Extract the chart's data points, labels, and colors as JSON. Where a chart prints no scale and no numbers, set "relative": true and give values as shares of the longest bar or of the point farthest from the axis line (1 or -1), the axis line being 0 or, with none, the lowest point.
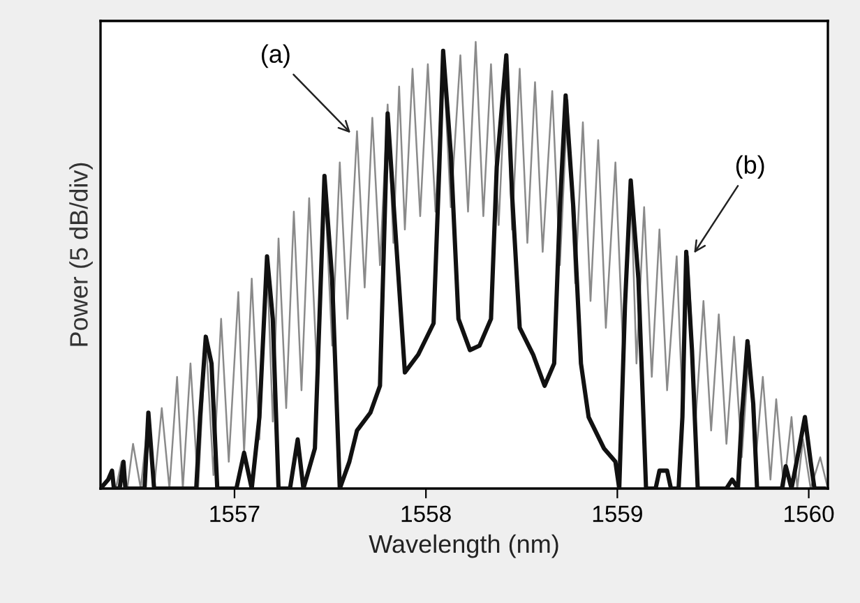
{
  "chart_data": {
    "type": "line",
    "relative": true,
    "xlabel": "Wavelength (nm)",
    "ylabel": "Power (5 dB/div)",
    "xlim": [
      1556.3,
      1560.1
    ],
    "xticks": [
      1557,
      1558,
      1559,
      1560
    ],
    "grid": false,
    "legend": false,
    "marker": "none",
    "line_style": "solid",
    "annotations": [
      {
        "text": "(a)",
        "x": 1557.62,
        "y": 0.79
      },
      {
        "text": "(b)",
        "x": 1559.39,
        "y": 0.52
      }
    ],
    "series": [
      {
        "color": "#8a8a8a",
        "x": [
          1556.3,
          1556.35,
          1556.38,
          1556.41,
          1556.44,
          1556.47,
          1556.51,
          1556.55,
          1556.58,
          1556.62,
          1556.66,
          1556.7,
          1556.73,
          1556.77,
          1556.81,
          1556.85,
          1556.89,
          1556.93,
          1556.97,
          1557.02,
          1557.05,
          1557.09,
          1557.13,
          1557.17,
          1557.2,
          1557.23,
          1557.27,
          1557.31,
          1557.35,
          1557.39,
          1557.43,
          1557.47,
          1557.51,
          1557.55,
          1557.59,
          1557.64,
          1557.68,
          1557.72,
          1557.76,
          1557.8,
          1557.83,
          1557.86,
          1557.89,
          1557.93,
          1557.97,
          1558.01,
          1558.05,
          1558.09,
          1558.13,
          1558.18,
          1558.22,
          1558.26,
          1558.3,
          1558.34,
          1558.38,
          1558.42,
          1558.45,
          1558.49,
          1558.53,
          1558.57,
          1558.61,
          1558.66,
          1558.7,
          1558.74,
          1558.78,
          1558.82,
          1558.86,
          1558.9,
          1558.94,
          1558.99,
          1559.03,
          1559.07,
          1559.1,
          1559.14,
          1559.18,
          1559.22,
          1559.26,
          1559.31,
          1559.34,
          1559.37,
          1559.41,
          1559.45,
          1559.49,
          1559.53,
          1559.57,
          1559.61,
          1559.65,
          1559.69,
          1559.72,
          1559.76,
          1559.8,
          1559.83,
          1559.87,
          1559.91,
          1559.94,
          1559.97,
          1560.01,
          1560.06,
          1560.1
        ],
        "values": [
          0,
          0.03,
          0,
          0.06,
          0,
          0.1,
          0,
          0.16,
          0,
          0.18,
          0,
          0.25,
          0,
          0.28,
          0,
          0.34,
          0.03,
          0.38,
          0.06,
          0.44,
          0.08,
          0.47,
          0.11,
          0.51,
          0.15,
          0.56,
          0.18,
          0.62,
          0.22,
          0.65,
          0.27,
          0.69,
          0.32,
          0.73,
          0.38,
          0.8,
          0.45,
          0.83,
          0.5,
          0.86,
          0.55,
          0.9,
          0.58,
          0.94,
          0.61,
          0.95,
          0.62,
          0.97,
          0.63,
          0.97,
          0.62,
          1,
          0.61,
          0.95,
          0.59,
          0.96,
          0.58,
          0.94,
          0.55,
          0.91,
          0.53,
          0.89,
          0.5,
          0.87,
          0.46,
          0.82,
          0.42,
          0.78,
          0.36,
          0.73,
          0.31,
          0.69,
          0.28,
          0.63,
          0.25,
          0.58,
          0.22,
          0.52,
          0.19,
          0.52,
          0.16,
          0.42,
          0.13,
          0.39,
          0.1,
          0.34,
          0.07,
          0.32,
          0.05,
          0.25,
          0.02,
          0.2,
          0,
          0.16,
          0,
          0.11,
          0,
          0.07,
          0
        ]
      },
      {
        "color": "#111111",
        "x": [
          1556.3,
          1556.34,
          1556.36,
          1556.37,
          1556.4,
          1556.42,
          1556.43,
          1556.53,
          1556.55,
          1556.58,
          1556.8,
          1556.82,
          1556.85,
          1556.88,
          1556.91,
          1557.01,
          1557.05,
          1557.09,
          1557.13,
          1557.17,
          1557.2,
          1557.23,
          1557.29,
          1557.33,
          1557.36,
          1557.42,
          1557.47,
          1557.51,
          1557.55,
          1557.6,
          1557.64,
          1557.71,
          1557.76,
          1557.8,
          1557.84,
          1557.89,
          1557.96,
          1558.04,
          1558.07,
          1558.09,
          1558.13,
          1558.17,
          1558.23,
          1558.28,
          1558.34,
          1558.37,
          1558.42,
          1558.45,
          1558.49,
          1558.56,
          1558.62,
          1558.67,
          1558.7,
          1558.73,
          1558.77,
          1558.81,
          1558.85,
          1558.93,
          1558.99,
          1559.01,
          1559.04,
          1559.07,
          1559.11,
          1559.15,
          1559.2,
          1559.22,
          1559.26,
          1559.28,
          1559.32,
          1559.34,
          1559.36,
          1559.39,
          1559.42,
          1559.57,
          1559.6,
          1559.63,
          1559.65,
          1559.68,
          1559.71,
          1559.73,
          1559.86,
          1559.88,
          1559.91,
          1559.95,
          1559.98,
          1560.01,
          1560.03,
          1560.08
        ],
        "values": [
          0,
          0.02,
          0.04,
          0,
          0,
          0.06,
          0,
          0,
          0.17,
          0,
          0,
          0.16,
          0.34,
          0.28,
          0,
          0,
          0.08,
          0,
          0.16,
          0.52,
          0.38,
          0,
          0,
          0.11,
          0,
          0.09,
          0.7,
          0.47,
          0,
          0.06,
          0.13,
          0.17,
          0.23,
          0.84,
          0.58,
          0.26,
          0.3,
          0.37,
          0.72,
          0.98,
          0.75,
          0.38,
          0.31,
          0.32,
          0.38,
          0.72,
          0.97,
          0.66,
          0.36,
          0.3,
          0.23,
          0.28,
          0.63,
          0.88,
          0.63,
          0.28,
          0.16,
          0.09,
          0.06,
          0,
          0.41,
          0.69,
          0.47,
          0,
          0,
          0.04,
          0.04,
          0,
          0,
          0.16,
          0.53,
          0.31,
          0,
          0,
          0.02,
          0,
          0.16,
          0.33,
          0.19,
          0,
          0,
          0.05,
          0,
          0.09,
          0.16,
          0.06,
          0,
          0
        ]
      }
    ]
  }
}
